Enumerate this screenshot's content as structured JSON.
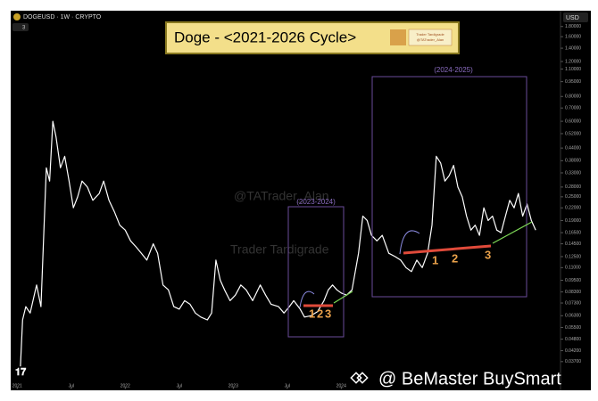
{
  "chart_data": {
    "type": "line",
    "header": {
      "symbol": "DOGEUSD · 1W · CRYPTO",
      "badge": "3",
      "currency": "USD"
    },
    "title": "Doge - <2021-2026 Cycle>",
    "logo_text": [
      "Trader Tardigrade",
      "@TATrader_Alan"
    ],
    "annotations": {
      "box_2023_2024": "(2023-2024)",
      "box_2024_2025": "(2024-2025)",
      "count_2023_2024": [
        "1",
        "2",
        "3"
      ],
      "count_2024_2025": [
        "1",
        "2",
        "3"
      ]
    },
    "watermarks": [
      "@TATrader_Alan",
      "Trader Tardigrade",
      "@ BeMaster BuySmart"
    ],
    "log_scale": true,
    "grid": false,
    "color": "#ffffff",
    "x": [
      2021.03,
      2021.05,
      2021.08,
      2021.12,
      2021.18,
      2021.22,
      2021.27,
      2021.3,
      2021.33,
      2021.36,
      2021.4,
      2021.44,
      2021.48,
      2021.52,
      2021.56,
      2021.6,
      2021.65,
      2021.7,
      2021.76,
      2021.8,
      2021.85,
      2021.9,
      2021.95,
      2022.0,
      2022.05,
      2022.1,
      2022.15,
      2022.2,
      2022.26,
      2022.3,
      2022.35,
      2022.4,
      2022.45,
      2022.5,
      2022.55,
      2022.6,
      2022.65,
      2022.7,
      2022.76,
      2022.8,
      2022.84,
      2022.88,
      2022.92,
      2022.97,
      2023.02,
      2023.07,
      2023.12,
      2023.18,
      2023.25,
      2023.3,
      2023.35,
      2023.42,
      2023.47,
      2023.52,
      2023.56,
      2023.62,
      2023.66,
      2023.72,
      2023.78,
      2023.84,
      2023.88,
      2023.92,
      2023.96,
      2024.0,
      2024.05,
      2024.1,
      2024.16,
      2024.2,
      2024.24,
      2024.28,
      2024.33,
      2024.38,
      2024.44,
      2024.5,
      2024.55,
      2024.6,
      2024.65,
      2024.7,
      2024.75,
      2024.8,
      2024.84,
      2024.88,
      2024.92,
      2024.96,
      2025.0,
      2025.04,
      2025.08,
      2025.12,
      2025.16,
      2025.2,
      2025.24,
      2025.28,
      2025.32,
      2025.36,
      2025.4,
      2025.44,
      2025.48,
      2025.52,
      2025.56,
      2025.6,
      2025.64,
      2025.68,
      2025.72,
      2025.76,
      2025.8
    ],
    "values": [
      0.035,
      0.06,
      0.07,
      0.065,
      0.09,
      0.07,
      0.35,
      0.3,
      0.6,
      0.5,
      0.35,
      0.4,
      0.3,
      0.22,
      0.25,
      0.3,
      0.28,
      0.24,
      0.26,
      0.3,
      0.24,
      0.21,
      0.18,
      0.17,
      0.15,
      0.14,
      0.13,
      0.12,
      0.145,
      0.13,
      0.09,
      0.085,
      0.07,
      0.068,
      0.075,
      0.072,
      0.065,
      0.062,
      0.06,
      0.065,
      0.12,
      0.095,
      0.085,
      0.075,
      0.08,
      0.09,
      0.085,
      0.075,
      0.09,
      0.08,
      0.072,
      0.07,
      0.065,
      0.07,
      0.075,
      0.068,
      0.062,
      0.063,
      0.066,
      0.075,
      0.085,
      0.09,
      0.085,
      0.082,
      0.08,
      0.085,
      0.13,
      0.2,
      0.19,
      0.16,
      0.15,
      0.16,
      0.13,
      0.125,
      0.12,
      0.11,
      0.105,
      0.12,
      0.11,
      0.13,
      0.18,
      0.4,
      0.37,
      0.3,
      0.32,
      0.36,
      0.28,
      0.25,
      0.2,
      0.17,
      0.18,
      0.16,
      0.22,
      0.19,
      0.2,
      0.17,
      0.165,
      0.2,
      0.24,
      0.22,
      0.26,
      0.2,
      0.23,
      0.19,
      0.17
    ],
    "xlim": [
      2020.94,
      2026.03
    ],
    "xticks": [
      2021,
      {
        "value": 2021.5,
        "label": "Jul"
      },
      2022,
      {
        "value": 2022.5,
        "label": "Jul"
      },
      2023,
      {
        "value": 2023.5,
        "label": "Jul"
      },
      2024
    ],
    "ylim": [
      0.034,
      1.95
    ],
    "yticks": [
      {
        "value": 1.8,
        "label": "1.80000"
      },
      {
        "value": 1.6,
        "label": "1.60000"
      },
      {
        "value": 1.4,
        "label": "1.40000"
      },
      {
        "value": 1.2,
        "label": "1.20000"
      },
      {
        "value": 1.1,
        "label": "1.10000"
      },
      {
        "value": 0.95,
        "label": "0.95000"
      },
      {
        "value": 0.8,
        "label": "0.80000"
      },
      {
        "value": 0.7,
        "label": "0.70000"
      },
      {
        "value": 0.6,
        "label": "0.60000"
      },
      {
        "value": 0.52,
        "label": "0.52000"
      },
      {
        "value": 0.44,
        "label": "0.44000"
      },
      {
        "value": 0.38,
        "label": "0.38000"
      },
      {
        "value": 0.33,
        "label": "0.33000"
      },
      {
        "value": 0.28,
        "label": "0.28000"
      },
      {
        "value": 0.25,
        "label": "0.25000"
      },
      {
        "value": 0.22,
        "label": "0.22000"
      },
      {
        "value": 0.19,
        "label": "0.19000"
      },
      {
        "value": 0.165,
        "label": "0.16500"
      },
      {
        "value": 0.145,
        "label": "0.14500"
      },
      {
        "value": 0.125,
        "label": "0.12500"
      },
      {
        "value": 0.11,
        "label": "0.11000"
      },
      {
        "value": 0.095,
        "label": "0.09500"
      },
      {
        "value": 0.083,
        "label": "0.08300"
      },
      {
        "value": 0.073,
        "label": "0.07300"
      },
      {
        "value": 0.063,
        "label": "0.06300"
      },
      {
        "value": 0.055,
        "label": "0.05500"
      },
      {
        "value": 0.048,
        "label": "0.04800"
      },
      {
        "value": 0.042,
        "label": "0.04200"
      },
      {
        "value": 0.037,
        "label": "0.03700"
      }
    ]
  }
}
